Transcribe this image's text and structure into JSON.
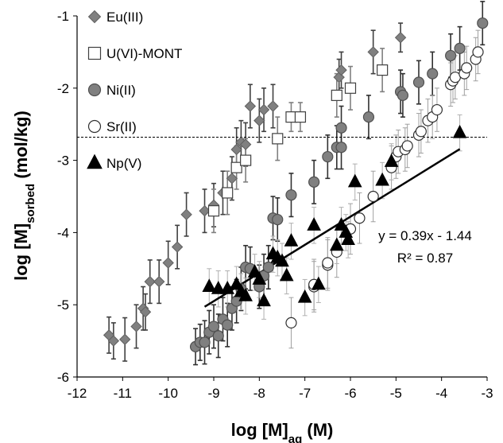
{
  "chart_data": {
    "type": "scatter",
    "title": "",
    "xlabel": {
      "main": "log [M]",
      "sub": "aq",
      "unit": " (M)"
    },
    "ylabel": {
      "main": "log [M]",
      "sub": "sorbed",
      "unit": " (mol/kg)"
    },
    "xlim": [
      -12,
      -3
    ],
    "ylim": [
      -6,
      -1
    ],
    "xticks": [
      -12,
      -11,
      -10,
      -9,
      -8,
      -7,
      -6,
      -5,
      -4,
      -3
    ],
    "yticks": [
      -6,
      -5,
      -4,
      -3,
      -2,
      -1
    ],
    "grid": false,
    "legend_position": "top-left",
    "reference_line": {
      "y": -2.68,
      "style": "dashed"
    },
    "series": [
      {
        "name": "Eu(III)",
        "marker": "diamond",
        "fill": "#808080",
        "stroke": "#606060",
        "errcolor": "#404040",
        "points": [
          {
            "x": -11.3,
            "y": -5.42,
            "e": 0.25
          },
          {
            "x": -11.2,
            "y": -5.5,
            "e": 0.25
          },
          {
            "x": -10.95,
            "y": -5.48,
            "e": 0.3
          },
          {
            "x": -10.7,
            "y": -5.3,
            "e": 0.3
          },
          {
            "x": -10.55,
            "y": -5.05,
            "e": 0.3
          },
          {
            "x": -10.5,
            "y": -5.1,
            "e": 0.25
          },
          {
            "x": -10.4,
            "y": -4.68,
            "e": 0.3
          },
          {
            "x": -10.2,
            "y": -4.68,
            "e": 0.3
          },
          {
            "x": -10.0,
            "y": -4.42,
            "e": 0.3
          },
          {
            "x": -9.8,
            "y": -4.2,
            "e": 0.3
          },
          {
            "x": -9.6,
            "y": -3.75,
            "e": 0.3
          },
          {
            "x": -9.2,
            "y": -3.7,
            "e": 0.3
          },
          {
            "x": -9.0,
            "y": -3.62,
            "e": 0.3
          },
          {
            "x": -8.8,
            "y": -3.45,
            "e": 0.3
          },
          {
            "x": -8.6,
            "y": -3.25,
            "e": 0.3
          },
          {
            "x": -8.5,
            "y": -2.85,
            "e": 0.3
          },
          {
            "x": -8.4,
            "y": -2.75,
            "e": 0.3
          },
          {
            "x": -8.3,
            "y": -2.78,
            "e": 0.3
          },
          {
            "x": -8.2,
            "y": -2.25,
            "e": 0.3
          },
          {
            "x": -8.0,
            "y": -2.45,
            "e": 0.3
          },
          {
            "x": -7.9,
            "y": -2.3,
            "e": 0.3
          },
          {
            "x": -7.7,
            "y": -2.25,
            "e": 0.3
          },
          {
            "x": -6.25,
            "y": -1.85,
            "e": 0.25
          },
          {
            "x": -6.2,
            "y": -1.75,
            "e": 0.25
          },
          {
            "x": -5.5,
            "y": -1.5,
            "e": 0.3
          },
          {
            "x": -4.9,
            "y": -1.3,
            "e": 0.2
          }
        ]
      },
      {
        "name": "U(VI)-MONT",
        "marker": "square",
        "fill": "#ffffff",
        "stroke": "#404040",
        "errcolor": "#808080",
        "points": [
          {
            "x": -9.0,
            "y": -3.7,
            "e": 0.3
          },
          {
            "x": -8.7,
            "y": -3.45,
            "e": 0.3
          },
          {
            "x": -8.5,
            "y": -3.1,
            "e": 0.3
          },
          {
            "x": -8.3,
            "y": -3.0,
            "e": 0.3
          },
          {
            "x": -7.6,
            "y": -2.7,
            "e": 0.3
          },
          {
            "x": -7.3,
            "y": -2.4,
            "e": 0.2
          },
          {
            "x": -7.1,
            "y": -2.4,
            "e": 0.2
          },
          {
            "x": -6.3,
            "y": -2.1,
            "e": 0.3
          },
          {
            "x": -6.0,
            "y": -2.0,
            "e": 0.3
          },
          {
            "x": -5.3,
            "y": -1.75,
            "e": 0.3
          }
        ]
      },
      {
        "name": "Ni(II)",
        "marker": "circle",
        "fill": "#808080",
        "stroke": "#505050",
        "errcolor": "#303030",
        "points": [
          {
            "x": -9.4,
            "y": -5.58,
            "e": 0.25
          },
          {
            "x": -9.3,
            "y": -5.52,
            "e": 0.25
          },
          {
            "x": -9.2,
            "y": -5.52,
            "e": 0.3
          },
          {
            "x": -9.1,
            "y": -5.38,
            "e": 0.3
          },
          {
            "x": -9.0,
            "y": -5.3,
            "e": 0.3
          },
          {
            "x": -8.9,
            "y": -5.43,
            "e": 0.3
          },
          {
            "x": -8.8,
            "y": -5.2,
            "e": 0.3
          },
          {
            "x": -8.7,
            "y": -5.28,
            "e": 0.3
          },
          {
            "x": -8.6,
            "y": -5.05,
            "e": 0.3
          },
          {
            "x": -8.5,
            "y": -4.95,
            "e": 0.3
          },
          {
            "x": -8.4,
            "y": -4.78,
            "e": 0.3
          },
          {
            "x": -8.3,
            "y": -4.48,
            "e": 0.3
          },
          {
            "x": -8.2,
            "y": -4.5,
            "e": 0.3
          },
          {
            "x": -8.0,
            "y": -4.75,
            "e": 0.3
          },
          {
            "x": -7.9,
            "y": -4.6,
            "e": 0.3
          },
          {
            "x": -7.8,
            "y": -4.48,
            "e": 0.3
          },
          {
            "x": -7.7,
            "y": -3.8,
            "e": 0.3
          },
          {
            "x": -7.6,
            "y": -3.82,
            "e": 0.3
          },
          {
            "x": -7.3,
            "y": -3.48,
            "e": 0.3
          },
          {
            "x": -6.8,
            "y": -3.3,
            "e": 0.3
          },
          {
            "x": -6.5,
            "y": -2.95,
            "e": 0.3
          },
          {
            "x": -6.3,
            "y": -2.82,
            "e": 0.3
          },
          {
            "x": -6.2,
            "y": -2.55,
            "e": 0.3
          },
          {
            "x": -6.2,
            "y": -2.82,
            "e": 0.3
          },
          {
            "x": -5.6,
            "y": -2.4,
            "e": 0.3
          },
          {
            "x": -4.9,
            "y": -2.05,
            "e": 0.3
          },
          {
            "x": -4.85,
            "y": -2.1,
            "e": 0.3
          },
          {
            "x": -4.5,
            "y": -1.92,
            "e": 0.3
          },
          {
            "x": -4.2,
            "y": -1.8,
            "e": 0.3
          },
          {
            "x": -3.8,
            "y": -1.55,
            "e": 0.3
          },
          {
            "x": -3.6,
            "y": -1.45,
            "e": 0.3
          },
          {
            "x": -3.1,
            "y": -1.1,
            "e": 0.3
          }
        ]
      },
      {
        "name": "Sr(II)",
        "marker": "circle",
        "fill": "#ffffff",
        "stroke": "#303030",
        "errcolor": "#a0a0a0",
        "points": [
          {
            "x": -7.3,
            "y": -5.25,
            "e": 0.35
          },
          {
            "x": -6.8,
            "y": -4.75,
            "e": 0.35
          },
          {
            "x": -6.8,
            "y": -4.72,
            "e": 0.35
          },
          {
            "x": -6.5,
            "y": -4.45,
            "e": 0.35
          },
          {
            "x": -6.5,
            "y": -4.42,
            "e": 0.35
          },
          {
            "x": -6.3,
            "y": -4.27,
            "e": 0.35
          },
          {
            "x": -6.0,
            "y": -3.95,
            "e": 0.35
          },
          {
            "x": -5.8,
            "y": -3.8,
            "e": 0.35
          },
          {
            "x": -5.5,
            "y": -3.5,
            "e": 0.35
          },
          {
            "x": -5.1,
            "y": -3.1,
            "e": 0.3
          },
          {
            "x": -5.0,
            "y": -2.95,
            "e": 0.3
          },
          {
            "x": -4.95,
            "y": -2.88,
            "e": 0.3
          },
          {
            "x": -4.8,
            "y": -2.85,
            "e": 0.3
          },
          {
            "x": -4.75,
            "y": -2.8,
            "e": 0.3
          },
          {
            "x": -4.5,
            "y": -2.65,
            "e": 0.3
          },
          {
            "x": -4.45,
            "y": -2.6,
            "e": 0.3
          },
          {
            "x": -4.3,
            "y": -2.45,
            "e": 0.3
          },
          {
            "x": -4.2,
            "y": -2.4,
            "e": 0.3
          },
          {
            "x": -4.1,
            "y": -2.3,
            "e": 0.3
          },
          {
            "x": -3.8,
            "y": -1.95,
            "e": 0.3
          },
          {
            "x": -3.75,
            "y": -1.9,
            "e": 0.3
          },
          {
            "x": -3.7,
            "y": -1.85,
            "e": 0.3
          },
          {
            "x": -3.5,
            "y": -1.8,
            "e": 0.3
          },
          {
            "x": -3.45,
            "y": -1.72,
            "e": 0.3
          },
          {
            "x": -3.25,
            "y": -1.6,
            "e": 0.3
          },
          {
            "x": -3.2,
            "y": -1.5,
            "e": 0.3
          }
        ]
      },
      {
        "name": "Np(V)",
        "marker": "triangle",
        "fill": "#000000",
        "stroke": "#000000",
        "errcolor": "#b0b0b0",
        "points": [
          {
            "x": -9.1,
            "y": -4.75,
            "e": 0.25
          },
          {
            "x": -8.9,
            "y": -4.78,
            "e": 0.25
          },
          {
            "x": -8.7,
            "y": -4.78,
            "e": 0.25
          },
          {
            "x": -8.5,
            "y": -4.72,
            "e": 0.25
          },
          {
            "x": -8.4,
            "y": -4.82,
            "e": 0.25
          },
          {
            "x": -8.3,
            "y": -4.88,
            "e": 0.25
          },
          {
            "x": -8.1,
            "y": -4.55,
            "e": 0.25
          },
          {
            "x": -8.0,
            "y": -4.65,
            "e": 0.25
          },
          {
            "x": -7.9,
            "y": -4.95,
            "e": 0.25
          },
          {
            "x": -7.7,
            "y": -4.3,
            "e": 0.25
          },
          {
            "x": -7.6,
            "y": -4.35,
            "e": 0.25
          },
          {
            "x": -7.5,
            "y": -4.4,
            "e": 0.25
          },
          {
            "x": -7.4,
            "y": -4.6,
            "e": 0.25
          },
          {
            "x": -7.3,
            "y": -4.12,
            "e": 0.25
          },
          {
            "x": -7.0,
            "y": -4.9,
            "e": 0.25
          },
          {
            "x": -6.8,
            "y": -3.9,
            "e": 0.25
          },
          {
            "x": -6.7,
            "y": -4.72,
            "e": 0.25
          },
          {
            "x": -6.3,
            "y": -4.18,
            "e": 0.25
          },
          {
            "x": -6.2,
            "y": -3.9,
            "e": 0.25
          },
          {
            "x": -6.1,
            "y": -4.0,
            "e": 0.25
          },
          {
            "x": -6.05,
            "y": -4.1,
            "e": 0.25
          },
          {
            "x": -5.9,
            "y": -3.3,
            "e": 0.25
          },
          {
            "x": -5.3,
            "y": -3.28,
            "e": 0.25
          },
          {
            "x": -5.1,
            "y": -3.02,
            "e": 0.25
          },
          {
            "x": -3.6,
            "y": -2.62,
            "e": 0.25
          }
        ]
      }
    ],
    "trendline": {
      "slope": 0.39,
      "intercept": -1.44,
      "x_range": [
        -9.2,
        -3.6
      ]
    },
    "annotations": {
      "equation": "y = 0.39x - 1.44",
      "r2": "R² = 0.87"
    }
  }
}
